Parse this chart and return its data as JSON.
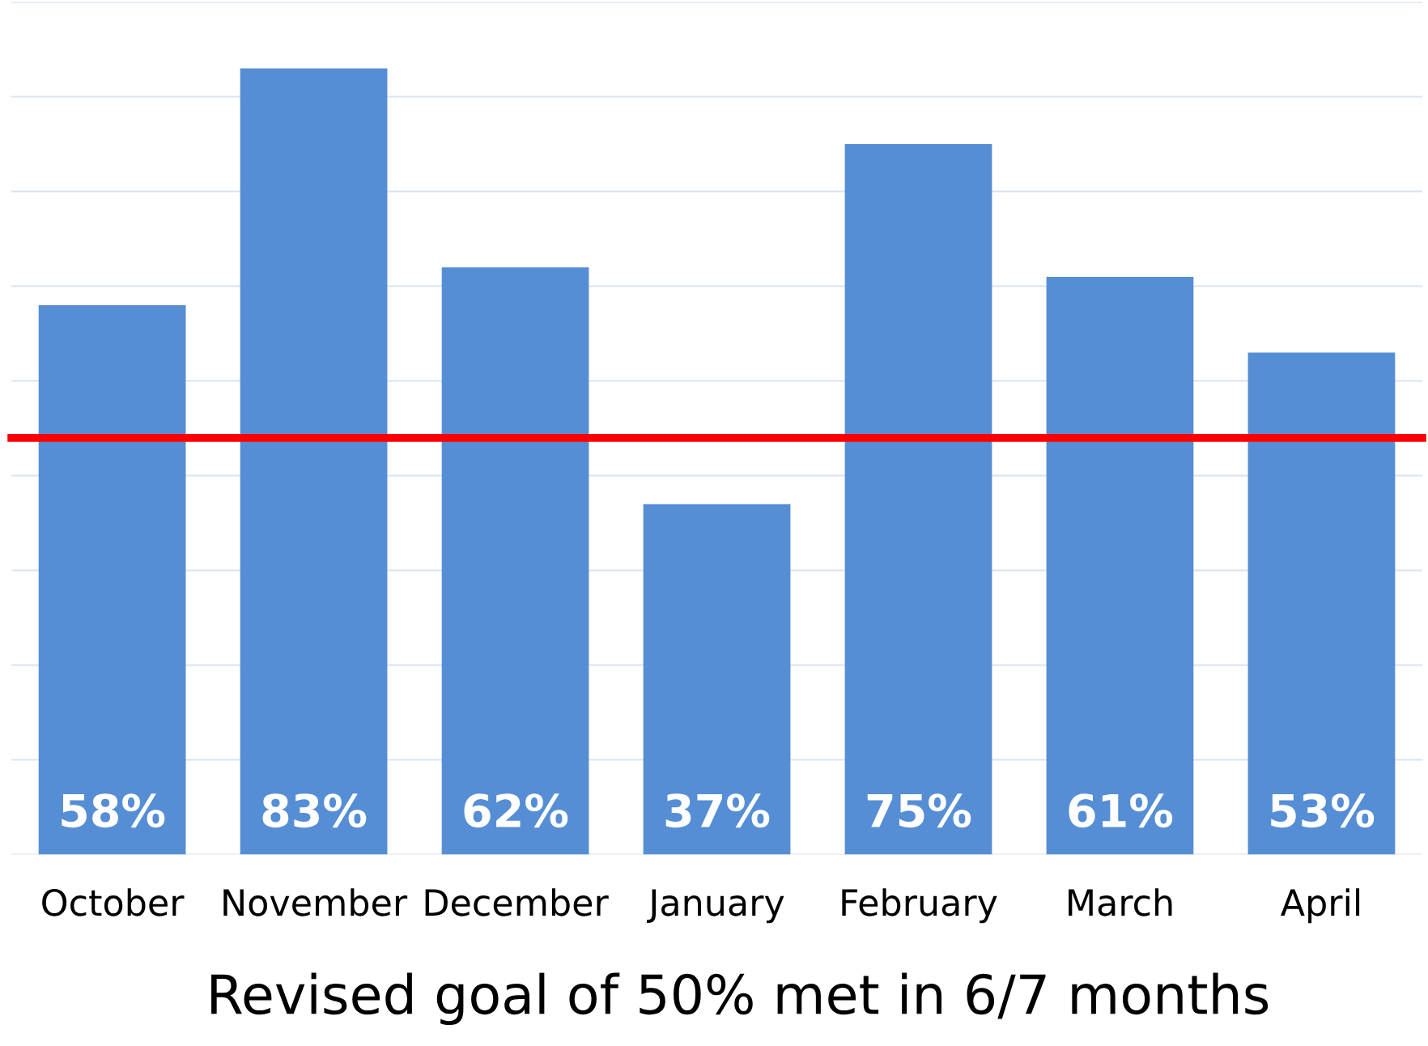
{
  "chart_data": {
    "type": "bar",
    "categories": [
      "October",
      "November",
      "December",
      "January",
      "February",
      "March",
      "April"
    ],
    "values": [
      58,
      83,
      62,
      37,
      75,
      61,
      53
    ],
    "value_labels": [
      "58%",
      "83%",
      "62%",
      "37%",
      "75%",
      "61%",
      "53%"
    ],
    "color": "#558ed5",
    "ylim": [
      0,
      90
    ],
    "yticks": [
      {
        "value": 0,
        "label": null
      },
      {
        "value": 10,
        "label": null
      },
      {
        "value": 20,
        "label": null
      },
      {
        "value": 30,
        "label": null
      },
      {
        "value": 40,
        "label": null
      },
      {
        "value": 50,
        "label": null
      },
      {
        "value": 60,
        "label": null
      },
      {
        "value": 70,
        "label": null
      },
      {
        "value": 80,
        "label": null
      },
      {
        "value": 90,
        "label": null
      }
    ],
    "tick_labels": "x",
    "grid": "y",
    "ref_lines": [
      {
        "axis": "y",
        "value": 44,
        "color": "#ff0000"
      }
    ],
    "annotations": [
      "Revised goal of 50% met in 6/7 months"
    ]
  }
}
